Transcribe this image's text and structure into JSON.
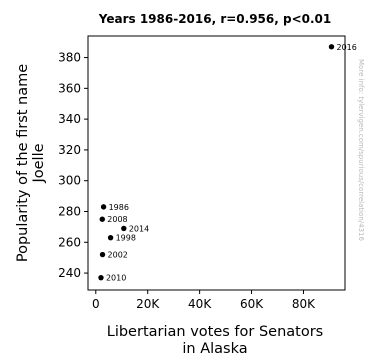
{
  "chart_data": {
    "type": "scatter",
    "title": "Years 1986-2016, r=0.956, p<0.01",
    "xlabel": [
      "Libertarian votes for Senators",
      "in Alaska"
    ],
    "ylabel": [
      "Popularity of the first name",
      "Joelle"
    ],
    "xlim": [
      -3000,
      96000
    ],
    "ylim": [
      229,
      394
    ],
    "x_ticks": [
      0,
      20000,
      40000,
      60000,
      80000
    ],
    "x_tick_labels": [
      "0",
      "20K",
      "40K",
      "60K",
      "80K"
    ],
    "y_ticks": [
      240,
      260,
      280,
      300,
      320,
      340,
      360,
      380
    ],
    "y_tick_labels": [
      "240",
      "260",
      "280",
      "300",
      "320",
      "340",
      "360",
      "380"
    ],
    "grid": false,
    "points": [
      {
        "label": "1986",
        "x": 3000,
        "y": 283
      },
      {
        "label": "2008",
        "x": 2500,
        "y": 275
      },
      {
        "label": "2014",
        "x": 10800,
        "y": 269
      },
      {
        "label": "1998",
        "x": 5700,
        "y": 263
      },
      {
        "label": "2002",
        "x": 2600,
        "y": 252
      },
      {
        "label": "2010",
        "x": 2000,
        "y": 237
      },
      {
        "label": "2016",
        "x": 90800,
        "y": 387
      }
    ],
    "watermark": "More info: tylervigen.com/spurious/correlation/4316"
  }
}
